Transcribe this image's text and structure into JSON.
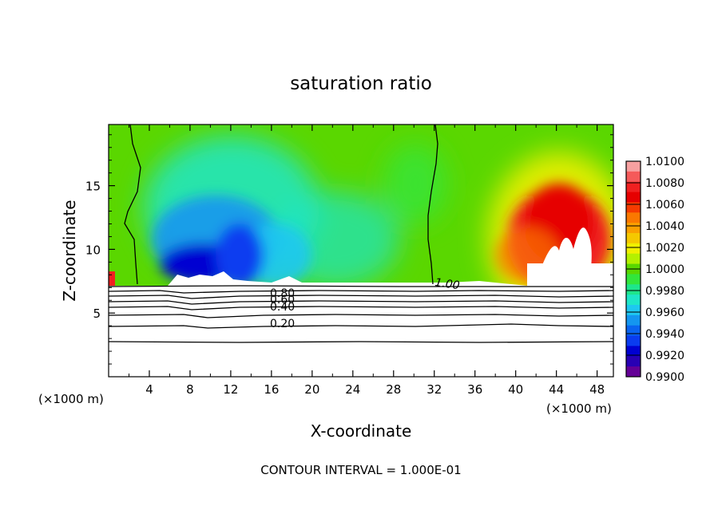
{
  "chart_data": {
    "type": "heatmap",
    "title": "saturation ratio",
    "xlabel": "X-coordinate",
    "ylabel": "Z-coordinate",
    "x_unit_left": "(×1000 m)",
    "x_unit_right": "(×1000 m)",
    "footer": "CONTOUR INTERVAL = 1.000E-01",
    "xlim": [
      0,
      49.6
    ],
    "ylim": [
      0,
      19.8
    ],
    "x_ticks": [
      "4",
      "8",
      "12",
      "16",
      "20",
      "24",
      "28",
      "32",
      "36",
      "40",
      "44",
      "48"
    ],
    "y_ticks": [
      "5",
      "10",
      "15"
    ],
    "colorbar": {
      "labels": [
        "1.0100",
        "1.0080",
        "1.0060",
        "1.0040",
        "1.0020",
        "1.0000",
        "0.9980",
        "0.9960",
        "0.9940",
        "0.9920",
        "0.9900"
      ],
      "levels": [
        1.01,
        1.009,
        1.008,
        1.007,
        1.006,
        1.005,
        1.004,
        1.003,
        1.002,
        1.001,
        1.0,
        0.999,
        0.998,
        0.997,
        0.996,
        0.995,
        0.994,
        0.993,
        0.992,
        0.991,
        0.99
      ],
      "colors": [
        "#f7a0a0",
        "#f55a5a",
        "#f02020",
        "#e60000",
        "#f53b00",
        "#fa7800",
        "#faa000",
        "#f5c800",
        "#f0f000",
        "#b4f000",
        "#5ad700",
        "#32e63c",
        "#1ee68c",
        "#1ee6c8",
        "#1ec8f0",
        "#1496f0",
        "#0a64f0",
        "#0a3cf0",
        "#0000d2",
        "#2800b4",
        "#640096"
      ]
    },
    "contour_labels": [
      "1.00",
      "0.80",
      "0.60",
      "0.40",
      "0.20"
    ]
  }
}
